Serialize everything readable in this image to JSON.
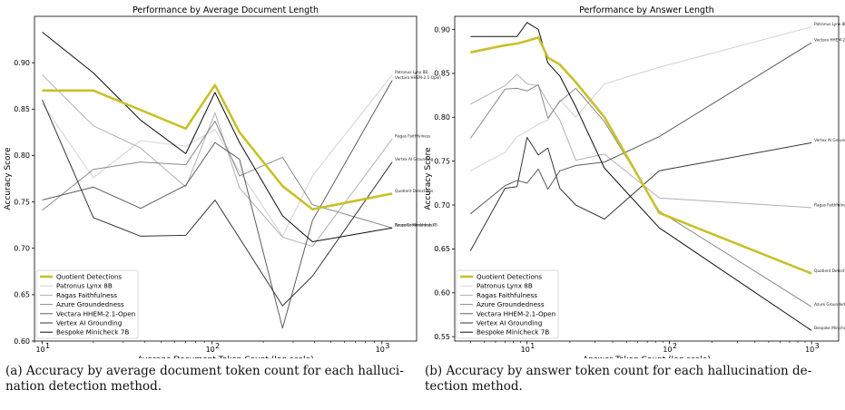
{
  "colors": {
    "Quotient Detections": "#c9c02a",
    "Patronus Lynx 8B": "#d2d2d2",
    "Ragas Faithfulness": "#b0b0b0",
    "Azure Groundedness": "#8a8a8a",
    "Vectara HHEM-2.1-Open": "#5e5e5e",
    "Vertex AI Grounding": "#353535",
    "Bespoke Minicheck 7B": "#0e0e0e"
  },
  "captions": {
    "a": "(a) Accuracy by average document token count for each halluci-nation detection method.",
    "b": "(b) Accuracy by answer token count for each hallucination de-tection method."
  },
  "chart_data": [
    {
      "type": "line",
      "title": "Performance by Average Document Length",
      "xlabel": "Average Document Token Count (log scale)",
      "ylabel": "Accuracy Score",
      "xscale": "log",
      "xlim": [
        9,
        1600
      ],
      "ylim": [
        0.6,
        0.95
      ],
      "x_ticks": [
        {
          "value": 10,
          "label": "10",
          "sup": "1"
        },
        {
          "value": 100,
          "label": "10",
          "sup": "2"
        },
        {
          "value": 1000,
          "label": "10",
          "sup": "3"
        }
      ],
      "y_ticks": [
        0.6,
        0.65,
        0.7,
        0.75,
        0.8,
        0.85,
        0.9
      ],
      "y_tick_labels": [
        "0.60",
        "0.65",
        "0.70",
        "0.75",
        "0.80",
        "0.85",
        "0.90"
      ],
      "grid": false,
      "legend_position": "lower-left",
      "x": [
        10,
        20,
        38,
        70,
        104,
        145,
        260,
        390,
        1150
      ],
      "series": [
        {
          "name": "Quotient Detections",
          "values": [
            0.87,
            0.87,
            0.849,
            0.829,
            0.876,
            0.825,
            0.767,
            0.742,
            0.759
          ],
          "end_label": "Quotient Detections"
        },
        {
          "name": "Patronus Lynx 8B",
          "values": [
            0.856,
            0.776,
            0.816,
            0.81,
            0.828,
            0.783,
            0.713,
            0.778,
            0.887
          ],
          "end_label": "Patronus Lynx 8B"
        },
        {
          "name": "Ragas Faithfulness",
          "values": [
            0.887,
            0.832,
            0.808,
            0.766,
            0.846,
            0.765,
            0.712,
            0.702,
            0.818
          ],
          "end_label": "Ragas Faithfulness"
        },
        {
          "name": "Azure Groundedness",
          "values": [
            0.741,
            0.785,
            0.793,
            0.79,
            0.837,
            0.778,
            0.798,
            0.747,
            0.722
          ],
          "end_label": "Azure Groundedness"
        },
        {
          "name": "Vectara HHEM-2.1-Open",
          "values": [
            0.752,
            0.766,
            0.743,
            0.768,
            0.814,
            0.796,
            0.614,
            0.73,
            0.881
          ],
          "end_label": "Vectara HHEM-2.1-Open"
        },
        {
          "name": "Vertex AI Grounding",
          "values": [
            0.86,
            0.733,
            0.713,
            0.714,
            0.752,
            0.711,
            0.638,
            0.67,
            0.793
          ],
          "end_label": "Vertex AI Grounding"
        },
        {
          "name": "Bespoke Minicheck 7B",
          "values": [
            0.933,
            0.889,
            0.838,
            0.802,
            0.868,
            0.814,
            0.735,
            0.707,
            0.722
          ],
          "end_label": "Bespoke Minicheck 7B"
        }
      ]
    },
    {
      "type": "line",
      "title": "Performance by Answer Length",
      "xlabel": "Answer Token Count (log scale)",
      "ylabel": "Accuracy Score",
      "xscale": "log",
      "xlim": [
        3.1,
        1550
      ],
      "ylim": [
        0.545,
        0.915
      ],
      "x_ticks": [
        {
          "value": 10,
          "label": "10",
          "sup": "1"
        },
        {
          "value": 100,
          "label": "10",
          "sup": "2"
        },
        {
          "value": 1000,
          "label": "10",
          "sup": "3"
        }
      ],
      "y_ticks": [
        0.55,
        0.6,
        0.65,
        0.7,
        0.75,
        0.8,
        0.85,
        0.9
      ],
      "y_tick_labels": [
        "0.55",
        "0.60",
        "0.65",
        "0.70",
        "0.75",
        "0.80",
        "0.85",
        "0.90"
      ],
      "grid": false,
      "legend_position": "lower-left",
      "x": [
        4,
        7,
        8.5,
        10,
        12,
        14,
        17,
        22,
        35,
        85,
        1000
      ],
      "series": [
        {
          "name": "Quotient Detections",
          "values": [
            0.874,
            0.882,
            0.884,
            0.887,
            0.891,
            0.868,
            0.86,
            0.84,
            0.8,
            0.691,
            0.622
          ],
          "end_label": "Quotient Detections"
        },
        {
          "name": "Patronus Lynx 8B",
          "values": [
            0.739,
            0.76,
            0.778,
            0.784,
            0.792,
            0.797,
            0.82,
            0.8,
            0.838,
            0.857,
            0.903
          ],
          "end_label": "Patronus Lynx 8B"
        },
        {
          "name": "Ragas Faithfulness",
          "values": [
            0.815,
            0.836,
            0.849,
            0.838,
            0.836,
            0.817,
            0.797,
            0.751,
            0.758,
            0.708,
            0.697
          ],
          "end_label": "Ragas Faithfulness"
        },
        {
          "name": "Azure Groundedness",
          "values": [
            0.776,
            0.832,
            0.833,
            0.83,
            0.837,
            0.799,
            0.818,
            0.833,
            0.795,
            0.693,
            0.584
          ],
          "end_label": "Azure Groundedness"
        },
        {
          "name": "Vectara HHEM-2.1-Open",
          "values": [
            0.69,
            0.722,
            0.728,
            0.725,
            0.741,
            0.718,
            0.739,
            0.745,
            0.749,
            0.778,
            0.885
          ],
          "end_label": "Vectara HHEM-2.1-Open"
        },
        {
          "name": "Vertex AI Grounding",
          "values": [
            0.648,
            0.719,
            0.721,
            0.777,
            0.757,
            0.765,
            0.719,
            0.7,
            0.684,
            0.739,
            0.771
          ],
          "end_label": "Vertex AI Grounding"
        },
        {
          "name": "Bespoke Minicheck 7B",
          "values": [
            0.892,
            0.892,
            0.892,
            0.908,
            0.9,
            0.862,
            0.847,
            0.812,
            0.742,
            0.674,
            0.557
          ],
          "end_label": "Bespoke Minicheck 7B"
        }
      ]
    }
  ]
}
